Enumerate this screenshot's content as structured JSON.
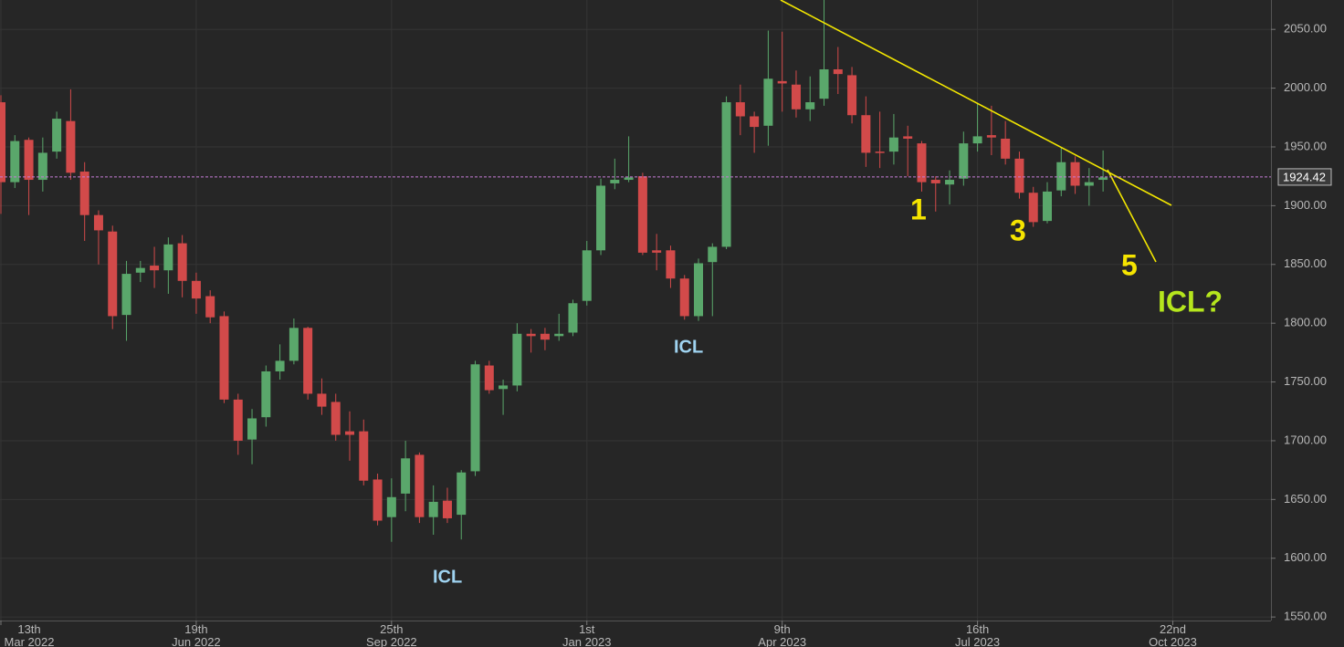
{
  "chart_data": {
    "type": "candlestick",
    "up_color": "#5aa76b",
    "down_color": "#d24a4a",
    "grid": true,
    "ylim": [
      1547,
      2075
    ],
    "yticks": [
      {
        "value": 1550,
        "label": "1550.00"
      },
      {
        "value": 1600,
        "label": "1600.00"
      },
      {
        "value": 1650,
        "label": "1650.00"
      },
      {
        "value": 1700,
        "label": "1700.00"
      },
      {
        "value": 1750,
        "label": "1750.00"
      },
      {
        "value": 1800,
        "label": "1800.00"
      },
      {
        "value": 1850,
        "label": "1850.00"
      },
      {
        "value": 1900,
        "label": "1900.00"
      },
      {
        "value": 1950,
        "label": "1950.00"
      },
      {
        "value": 2000,
        "label": "2000.00"
      },
      {
        "value": 2050,
        "label": "2050.00"
      }
    ],
    "last_price": 1924.42,
    "categories": [
      "13th\nMar 2022",
      null,
      null,
      null,
      null,
      null,
      null,
      null,
      null,
      null,
      null,
      null,
      null,
      null,
      "19th\nJun 2022",
      null,
      null,
      null,
      null,
      null,
      null,
      null,
      null,
      null,
      null,
      null,
      null,
      null,
      "25th\nSep 2022",
      null,
      null,
      null,
      null,
      null,
      null,
      null,
      null,
      null,
      null,
      null,
      null,
      null,
      "1st\nJan 2023",
      null,
      null,
      null,
      null,
      null,
      null,
      null,
      null,
      null,
      null,
      null,
      null,
      null,
      "9th\nApr 2023",
      null,
      null,
      null,
      null,
      null,
      null,
      null,
      null,
      null,
      null,
      null,
      null,
      null,
      "16th\nJul 2023",
      null,
      null,
      null,
      null,
      null,
      null,
      null,
      null,
      null,
      null,
      null,
      null,
      null,
      "22nd\nOct 2023"
    ],
    "open": [
      1988,
      1920,
      1956,
      1922,
      1946,
      1972,
      1929,
      1892,
      1878,
      1807,
      1843,
      1849,
      1845,
      1868,
      1836,
      1823,
      1806,
      1735,
      1701,
      1720,
      1759,
      1768,
      1796,
      1740,
      1733,
      1708,
      1708,
      1667,
      1635,
      1655,
      1688,
      1635,
      1649,
      1637,
      1674,
      1764,
      1744,
      1747,
      1791,
      1791,
      1789,
      1792,
      1819,
      1862,
      1919,
      1922,
      1925,
      1862,
      1862,
      1838,
      1806,
      1852,
      1865,
      1988,
      1976,
      1968,
      2006,
      2003,
      1982,
      1991,
      2016,
      2011,
      1977,
      1946,
      1946,
      1959,
      1953,
      1922,
      1918,
      1923,
      1953,
      1960,
      1957,
      1940,
      1911,
      1887,
      1913,
      1937,
      1917,
      1922,
      null,
      null,
      null,
      null,
      null
    ],
    "high": [
      1994,
      1960,
      1958,
      1958,
      1980,
      1999,
      1937,
      1896,
      1883,
      1853,
      1853,
      1865,
      1873,
      1875,
      1843,
      1828,
      1810,
      1740,
      1727,
      1764,
      1782,
      1804,
      1797,
      1753,
      1740,
      1725,
      1718,
      1672,
      1668,
      1700,
      1690,
      1662,
      1660,
      1675,
      1768,
      1768,
      1752,
      1800,
      1795,
      1796,
      1808,
      1820,
      1870,
      1923,
      1940,
      1959,
      1928,
      1876,
      1866,
      1841,
      1855,
      1868,
      1993,
      2003,
      1980,
      2049,
      2048,
      2015,
      2010,
      2080,
      2035,
      2018,
      1993,
      1980,
      1978,
      1968,
      1955,
      1925,
      1930,
      1963,
      1987,
      1985,
      1972,
      1946,
      1916,
      1920,
      1950,
      1942,
      1932,
      1947,
      null,
      null,
      null,
      null,
      null
    ],
    "low": [
      1893,
      1915,
      1892,
      1912,
      1940,
      1922,
      1870,
      1850,
      1795,
      1785,
      1835,
      1830,
      1825,
      1822,
      1808,
      1800,
      1732,
      1688,
      1680,
      1712,
      1752,
      1765,
      1735,
      1722,
      1700,
      1683,
      1662,
      1628,
      1614,
      1640,
      1630,
      1620,
      1630,
      1616,
      1670,
      1740,
      1722,
      1742,
      1775,
      1777,
      1785,
      1789,
      1815,
      1858,
      1914,
      1920,
      1858,
      1845,
      1830,
      1803,
      1802,
      1806,
      1863,
      1960,
      1945,
      1951,
      1980,
      1975,
      1972,
      1985,
      1995,
      1970,
      1933,
      1932,
      1935,
      1925,
      1912,
      1895,
      1901,
      1917,
      1946,
      1943,
      1935,
      1906,
      1882,
      1885,
      1908,
      1910,
      1900,
      1912,
      null,
      null,
      null,
      null,
      null
    ],
    "close": [
      1920,
      1955,
      1922,
      1945,
      1974,
      1928,
      1892,
      1879,
      1806,
      1842,
      1847,
      1845,
      1867,
      1836,
      1821,
      1805,
      1735,
      1700,
      1719,
      1759,
      1768,
      1796,
      1740,
      1729,
      1705,
      1705,
      1666,
      1632,
      1652,
      1685,
      1635,
      1648,
      1634,
      1673,
      1765,
      1743,
      1747,
      1791,
      1789,
      1786,
      1791,
      1817,
      1862,
      1917,
      1922,
      1924,
      1860,
      1860,
      1838,
      1806,
      1851,
      1865,
      1988,
      1976,
      1967,
      2008,
      2004,
      1982,
      1988,
      2016,
      2012,
      1977,
      1945,
      1945,
      1958,
      1957,
      1920,
      1919,
      1922,
      1953,
      1959,
      1958,
      1940,
      1911,
      1886,
      1912,
      1937,
      1917,
      1920,
      1924,
      null,
      null,
      null,
      null,
      null
    ],
    "annotations": [
      "ICL",
      "ICL",
      "1",
      "3",
      "5",
      "ICL?"
    ]
  }
}
